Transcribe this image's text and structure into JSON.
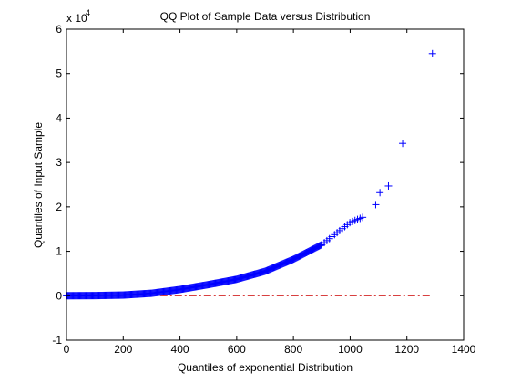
{
  "chart_data": {
    "type": "scatter",
    "title": "QQ Plot of Sample Data versus Distribution",
    "xlabel": "Quantiles of exponential Distribution",
    "ylabel": "Quantiles of Input Sample",
    "xlim": [
      0,
      1400
    ],
    "ylim": [
      -10000,
      60000
    ],
    "xticks": [
      0,
      200,
      400,
      600,
      800,
      1000,
      1200,
      1400
    ],
    "yticks": [
      -1,
      0,
      1,
      2,
      3,
      4,
      5,
      6
    ],
    "y_exponent_label": "x 10",
    "y_exponent": "4",
    "grid": false,
    "series": [
      {
        "marker": "+",
        "color": "#0000ff",
        "x": [
          1090,
          1105,
          1135,
          1185,
          1290
        ],
        "y": [
          20500,
          23200,
          24700,
          34300,
          54500
        ],
        "dense_curve": [
          [
            0,
            0
          ],
          [
            100,
            30
          ],
          [
            200,
            150
          ],
          [
            300,
            550
          ],
          [
            400,
            1400
          ],
          [
            500,
            2500
          ],
          [
            600,
            3700
          ],
          [
            700,
            5500
          ],
          [
            800,
            8200
          ],
          [
            900,
            11500
          ],
          [
            950,
            14000
          ],
          [
            1000,
            16500
          ],
          [
            1050,
            17800
          ]
        ]
      },
      {
        "style": "dash-dot",
        "color": "#cc0000",
        "x": [
          330,
          1290
        ],
        "y": [
          0,
          0
        ]
      }
    ]
  }
}
